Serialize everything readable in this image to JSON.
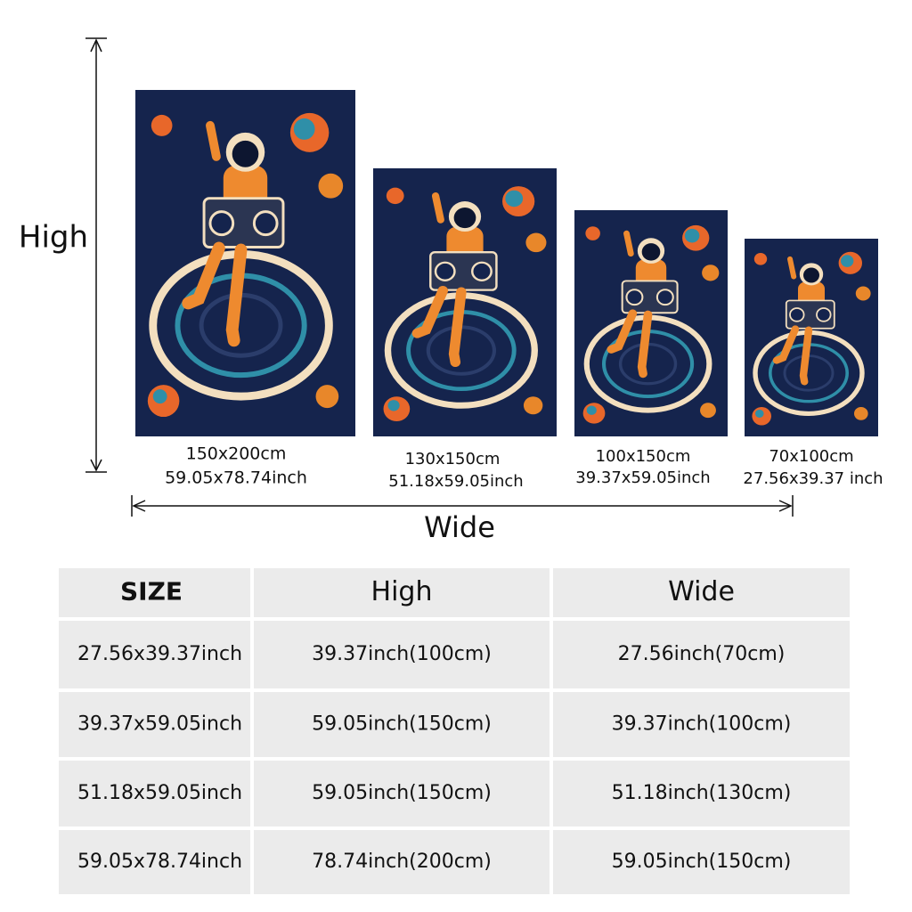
{
  "axes": {
    "vertical_label": "High",
    "horizontal_label": "Wide"
  },
  "posters": [
    {
      "cm": "150x200cm",
      "inch": "59.05x78.74inch"
    },
    {
      "cm": "130x150cm",
      "inch": "51.18x59.05inch"
    },
    {
      "cm": "100x150cm",
      "inch": "39.37x59.05inch"
    },
    {
      "cm": "70x100cm",
      "inch": "27.56x39.37 inch"
    }
  ],
  "table": {
    "header": [
      "SIZE",
      "High",
      "Wide"
    ],
    "rows": [
      [
        "27.56x39.37inch",
        "39.37inch(100cm)",
        "27.56inch(70cm)"
      ],
      [
        "39.37x59.05inch",
        "59.05inch(150cm)",
        "39.37inch(100cm)"
      ],
      [
        "51.18x59.05inch",
        "59.05inch(150cm)",
        "51.18inch(130cm)"
      ],
      [
        "59.05x78.74inch",
        "78.74inch(200cm)",
        "59.05inch(150cm)"
      ]
    ]
  }
}
